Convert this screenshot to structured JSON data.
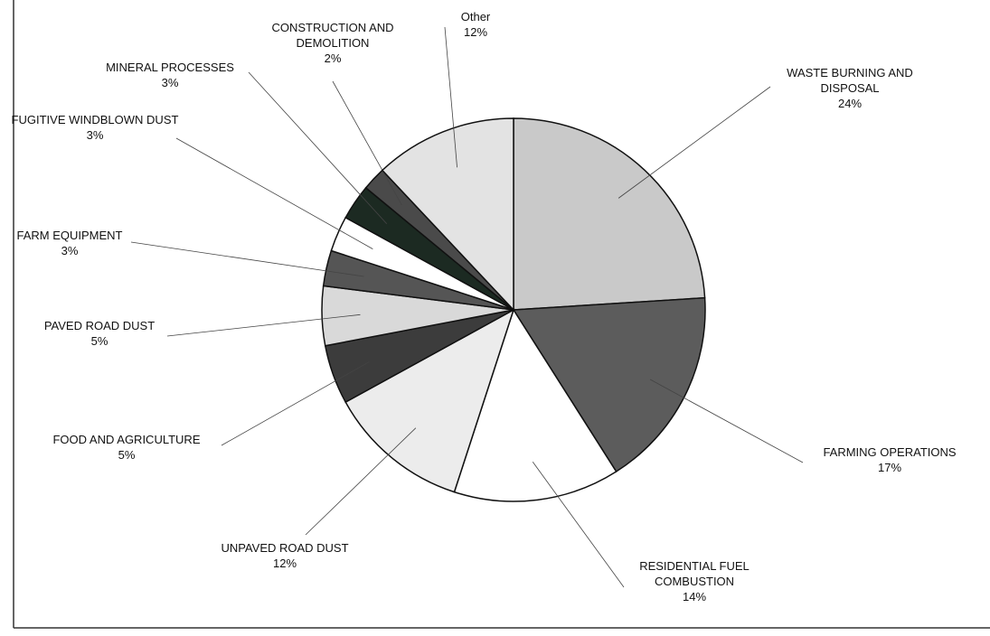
{
  "chart_data": {
    "type": "pie",
    "categories": [
      "WASTE BURNING AND DISPOSAL",
      "FARMING OPERATIONS",
      "RESIDENTIAL FUEL COMBUSTION",
      "UNPAVED ROAD DUST",
      "FOOD AND AGRICULTURE",
      "PAVED ROAD DUST",
      "FARM EQUIPMENT",
      "FUGITIVE WINDBLOWN DUST",
      "MINERAL PROCESSES",
      "CONSTRUCTION AND DEMOLITION",
      "Other"
    ],
    "values": [
      24,
      17,
      14,
      12,
      5,
      5,
      3,
      3,
      3,
      2,
      12
    ],
    "value_labels": [
      "24%",
      "17%",
      "14%",
      "12%",
      "5%",
      "5%",
      "3%",
      "3%",
      "3%",
      "2%",
      "12%"
    ],
    "colors": [
      "#c9c9c9",
      "#5c5c5c",
      "#ffffff",
      "#ececec",
      "#3c3c3c",
      "#d9d9d9",
      "#555555",
      "#ffffff",
      "#1c2a22",
      "#4a4a4a",
      "#e3e3e3"
    ]
  }
}
